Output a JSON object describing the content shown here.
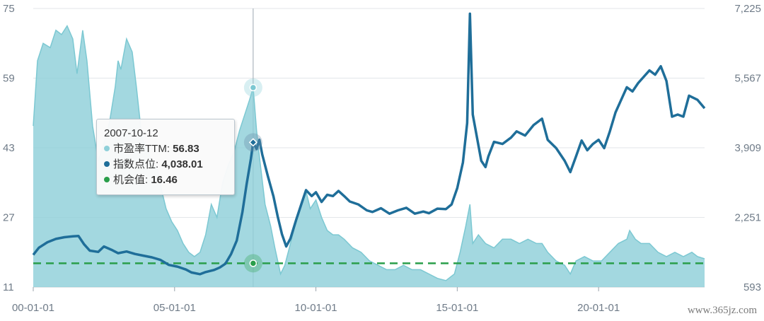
{
  "chart_data": {
    "type": "line",
    "x_ticks": [
      "00-01-01",
      "05-01-01",
      "10-01-01",
      "15-01-01",
      "20-01-01"
    ],
    "x_tick_years": [
      2000,
      2005,
      2010,
      2015,
      2020
    ],
    "xlim": [
      2000.0,
      2023.75
    ],
    "y_left": {
      "ticks": [
        "75",
        "59",
        "43",
        "27",
        "11"
      ],
      "ylim": [
        11,
        75
      ]
    },
    "y_right": {
      "ticks": [
        "7,225",
        "5,567",
        "3,909",
        "2,251",
        "593"
      ],
      "ylim": [
        593,
        7225
      ]
    },
    "grid": "horizontal",
    "series": [
      {
        "name": "市盈率TTM",
        "type": "area",
        "axis": "left",
        "color": "#8fd0d9",
        "line_color": "#7cc8d2",
        "points": [
          [
            2000.0,
            48
          ],
          [
            2000.15,
            63
          ],
          [
            2000.35,
            67
          ],
          [
            2000.6,
            66
          ],
          [
            2000.8,
            70
          ],
          [
            2001.0,
            69
          ],
          [
            2001.2,
            71
          ],
          [
            2001.4,
            68
          ],
          [
            2001.55,
            60
          ],
          [
            2001.75,
            70
          ],
          [
            2001.9,
            63
          ],
          [
            2002.1,
            48
          ],
          [
            2002.3,
            40
          ],
          [
            2002.5,
            44
          ],
          [
            2002.7,
            49
          ],
          [
            2002.9,
            57
          ],
          [
            2003.0,
            63
          ],
          [
            2003.1,
            61
          ],
          [
            2003.3,
            68
          ],
          [
            2003.5,
            65
          ],
          [
            2003.65,
            57
          ],
          [
            2003.85,
            45
          ],
          [
            2004.0,
            43
          ],
          [
            2004.2,
            40
          ],
          [
            2004.4,
            38
          ],
          [
            2004.55,
            33
          ],
          [
            2004.7,
            29
          ],
          [
            2004.9,
            26
          ],
          [
            2005.1,
            24
          ],
          [
            2005.3,
            21
          ],
          [
            2005.5,
            19
          ],
          [
            2005.7,
            18
          ],
          [
            2005.9,
            19
          ],
          [
            2006.1,
            23
          ],
          [
            2006.3,
            30
          ],
          [
            2006.5,
            27
          ],
          [
            2006.7,
            35
          ],
          [
            2006.9,
            39
          ],
          [
            2007.1,
            42
          ],
          [
            2007.3,
            47
          ],
          [
            2007.5,
            51
          ],
          [
            2007.65,
            54
          ],
          [
            2007.78,
            56.83
          ],
          [
            2007.9,
            47
          ],
          [
            2008.0,
            41
          ],
          [
            2008.2,
            30
          ],
          [
            2008.4,
            25
          ],
          [
            2008.55,
            20
          ],
          [
            2008.75,
            14
          ],
          [
            2008.9,
            16
          ],
          [
            2009.1,
            21
          ],
          [
            2009.3,
            26
          ],
          [
            2009.5,
            30
          ],
          [
            2009.65,
            33
          ],
          [
            2009.8,
            29
          ],
          [
            2010.0,
            31
          ],
          [
            2010.2,
            27
          ],
          [
            2010.4,
            24
          ],
          [
            2010.6,
            23
          ],
          [
            2010.8,
            23
          ],
          [
            2011.0,
            22
          ],
          [
            2011.3,
            20
          ],
          [
            2011.6,
            19
          ],
          [
            2011.9,
            17
          ],
          [
            2012.2,
            16
          ],
          [
            2012.5,
            15
          ],
          [
            2012.8,
            15
          ],
          [
            2013.1,
            16
          ],
          [
            2013.4,
            15
          ],
          [
            2013.7,
            15
          ],
          [
            2014.0,
            14
          ],
          [
            2014.3,
            13
          ],
          [
            2014.6,
            12.5
          ],
          [
            2014.9,
            14
          ],
          [
            2015.1,
            19
          ],
          [
            2015.3,
            25
          ],
          [
            2015.45,
            30
          ],
          [
            2015.55,
            21
          ],
          [
            2015.75,
            23
          ],
          [
            2016.0,
            21
          ],
          [
            2016.3,
            20
          ],
          [
            2016.6,
            22
          ],
          [
            2016.9,
            22
          ],
          [
            2017.2,
            21
          ],
          [
            2017.5,
            22
          ],
          [
            2017.8,
            21
          ],
          [
            2018.0,
            21
          ],
          [
            2018.2,
            19
          ],
          [
            2018.5,
            17
          ],
          [
            2018.8,
            16
          ],
          [
            2019.0,
            14
          ],
          [
            2019.2,
            17
          ],
          [
            2019.5,
            18
          ],
          [
            2019.8,
            17
          ],
          [
            2020.1,
            17
          ],
          [
            2020.4,
            19
          ],
          [
            2020.7,
            21
          ],
          [
            2021.0,
            22
          ],
          [
            2021.1,
            24
          ],
          [
            2021.3,
            22
          ],
          [
            2021.5,
            21
          ],
          [
            2021.8,
            21
          ],
          [
            2022.1,
            19
          ],
          [
            2022.4,
            18
          ],
          [
            2022.7,
            19
          ],
          [
            2023.0,
            18
          ],
          [
            2023.3,
            19
          ],
          [
            2023.5,
            18
          ],
          [
            2023.75,
            17.5
          ]
        ]
      },
      {
        "name": "指数点位",
        "type": "line",
        "axis": "right",
        "color": "#1f6e99",
        "points": [
          [
            2000.0,
            1360
          ],
          [
            2000.2,
            1530
          ],
          [
            2000.5,
            1660
          ],
          [
            2000.8,
            1740
          ],
          [
            2001.1,
            1780
          ],
          [
            2001.4,
            1800
          ],
          [
            2001.6,
            1810
          ],
          [
            2001.8,
            1610
          ],
          [
            2002.0,
            1460
          ],
          [
            2002.3,
            1430
          ],
          [
            2002.5,
            1560
          ],
          [
            2002.8,
            1470
          ],
          [
            2003.0,
            1400
          ],
          [
            2003.3,
            1440
          ],
          [
            2003.6,
            1380
          ],
          [
            2003.9,
            1340
          ],
          [
            2004.2,
            1300
          ],
          [
            2004.5,
            1240
          ],
          [
            2004.8,
            1120
          ],
          [
            2005.1,
            1080
          ],
          [
            2005.4,
            1010
          ],
          [
            2005.6,
            940
          ],
          [
            2005.9,
            900
          ],
          [
            2006.1,
            950
          ],
          [
            2006.4,
            1000
          ],
          [
            2006.6,
            1060
          ],
          [
            2006.8,
            1150
          ],
          [
            2007.0,
            1380
          ],
          [
            2007.2,
            1700
          ],
          [
            2007.4,
            2380
          ],
          [
            2007.55,
            3050
          ],
          [
            2007.7,
            3650
          ],
          [
            2007.78,
            4038
          ],
          [
            2007.9,
            3880
          ],
          [
            2008.0,
            4100
          ],
          [
            2008.1,
            3750
          ],
          [
            2008.3,
            3230
          ],
          [
            2008.5,
            2750
          ],
          [
            2008.65,
            2270
          ],
          [
            2008.8,
            1850
          ],
          [
            2008.95,
            1560
          ],
          [
            2009.1,
            1750
          ],
          [
            2009.3,
            2190
          ],
          [
            2009.5,
            2600
          ],
          [
            2009.65,
            2900
          ],
          [
            2009.85,
            2760
          ],
          [
            2010.0,
            2850
          ],
          [
            2010.2,
            2620
          ],
          [
            2010.4,
            2790
          ],
          [
            2010.6,
            2760
          ],
          [
            2010.8,
            2880
          ],
          [
            2011.0,
            2760
          ],
          [
            2011.2,
            2630
          ],
          [
            2011.5,
            2560
          ],
          [
            2011.8,
            2420
          ],
          [
            2012.0,
            2380
          ],
          [
            2012.3,
            2470
          ],
          [
            2012.6,
            2340
          ],
          [
            2012.9,
            2420
          ],
          [
            2013.2,
            2480
          ],
          [
            2013.5,
            2340
          ],
          [
            2013.8,
            2390
          ],
          [
            2014.0,
            2350
          ],
          [
            2014.3,
            2460
          ],
          [
            2014.6,
            2450
          ],
          [
            2014.8,
            2560
          ],
          [
            2015.0,
            2950
          ],
          [
            2015.2,
            3560
          ],
          [
            2015.35,
            4500
          ],
          [
            2015.45,
            7100
          ],
          [
            2015.55,
            4700
          ],
          [
            2015.7,
            4150
          ],
          [
            2015.85,
            3600
          ],
          [
            2016.0,
            3450
          ],
          [
            2016.1,
            3700
          ],
          [
            2016.3,
            4050
          ],
          [
            2016.6,
            4000
          ],
          [
            2016.9,
            4150
          ],
          [
            2017.1,
            4300
          ],
          [
            2017.4,
            4200
          ],
          [
            2017.7,
            4450
          ],
          [
            2018.0,
            4600
          ],
          [
            2018.2,
            4100
          ],
          [
            2018.5,
            3900
          ],
          [
            2018.8,
            3600
          ],
          [
            2019.0,
            3330
          ],
          [
            2019.2,
            3700
          ],
          [
            2019.4,
            4080
          ],
          [
            2019.6,
            3850
          ],
          [
            2019.8,
            4000
          ],
          [
            2020.0,
            4100
          ],
          [
            2020.2,
            3900
          ],
          [
            2020.4,
            4300
          ],
          [
            2020.6,
            4750
          ],
          [
            2020.8,
            5050
          ],
          [
            2021.0,
            5350
          ],
          [
            2021.2,
            5250
          ],
          [
            2021.4,
            5450
          ],
          [
            2021.6,
            5600
          ],
          [
            2021.8,
            5750
          ],
          [
            2022.0,
            5650
          ],
          [
            2022.2,
            5850
          ],
          [
            2022.4,
            5500
          ],
          [
            2022.6,
            4650
          ],
          [
            2022.8,
            4700
          ],
          [
            2023.0,
            4650
          ],
          [
            2023.2,
            5150
          ],
          [
            2023.5,
            5050
          ],
          [
            2023.75,
            4850
          ]
        ]
      },
      {
        "name": "机会值",
        "type": "line",
        "axis": "left",
        "color": "#2a9e4a",
        "dashed": true,
        "value": 16.46
      }
    ],
    "crosshair_x": 2007.78,
    "tooltip": {
      "date": "2007-10-12",
      "rows": [
        {
          "label": "市盈率TTM: ",
          "value": "56.83",
          "color": "#8fd0d9"
        },
        {
          "label": "指数点位: ",
          "value": "4,038.01",
          "color": "#1f6e99"
        },
        {
          "label": "机会值: ",
          "value": "16.46",
          "color": "#2a9e4a"
        }
      ]
    }
  },
  "watermark": "www.365jz.com"
}
